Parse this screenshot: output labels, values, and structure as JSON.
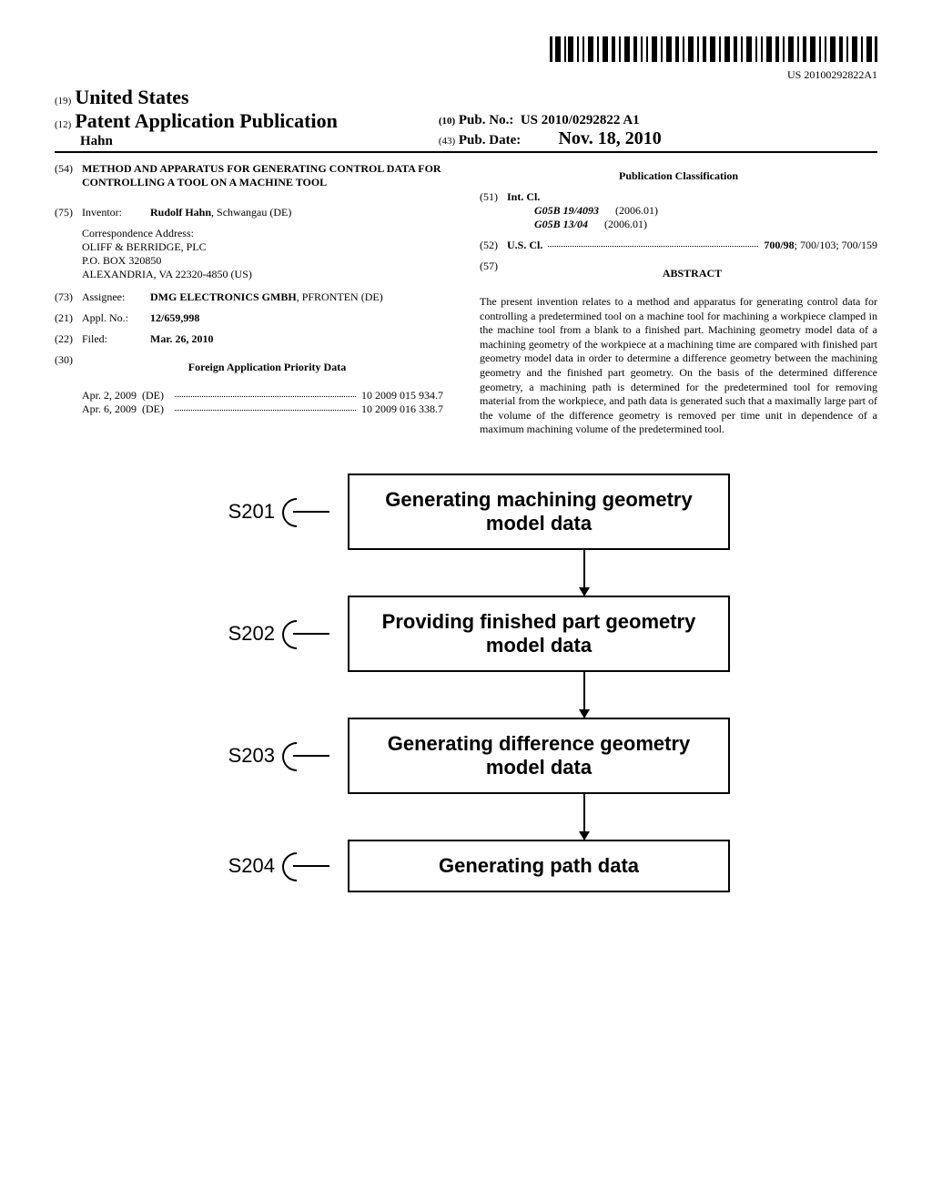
{
  "barcode_number": "US 20100292822A1",
  "header": {
    "prefix19": "(19)",
    "country": "United States",
    "prefix12": "(12)",
    "pub_type": "Patent Application Publication",
    "author": "Hahn",
    "prefix10": "(10)",
    "pub_no_label": "Pub. No.:",
    "pub_no": "US 2010/0292822 A1",
    "prefix43": "(43)",
    "pub_date_label": "Pub. Date:",
    "pub_date": "Nov. 18, 2010"
  },
  "left": {
    "f54": {
      "num": "(54)",
      "text": "METHOD AND APPARATUS FOR GENERATING CONTROL DATA FOR CONTROLLING A TOOL ON A MACHINE TOOL"
    },
    "f75": {
      "num": "(75)",
      "label": "Inventor:",
      "value": "Rudolf Hahn",
      "suffix": ", Schwangau (DE)"
    },
    "corr": {
      "label": "Correspondence Address:",
      "l1": "OLIFF & BERRIDGE, PLC",
      "l2": "P.O. BOX 320850",
      "l3": "ALEXANDRIA, VA 22320-4850 (US)"
    },
    "f73": {
      "num": "(73)",
      "label": "Assignee:",
      "value": "DMG ELECTRONICS GMBH",
      "suffix": ", PFRONTEN (DE)"
    },
    "f21": {
      "num": "(21)",
      "label": "Appl. No.:",
      "value": "12/659,998"
    },
    "f22": {
      "num": "(22)",
      "label": "Filed:",
      "value": "Mar. 26, 2010"
    },
    "f30": {
      "num": "(30)",
      "heading": "Foreign Application Priority Data"
    },
    "priority": [
      {
        "date": "Apr. 2, 2009",
        "cc": "(DE)",
        "num": "10 2009 015 934.7"
      },
      {
        "date": "Apr. 6, 2009",
        "cc": "(DE)",
        "num": "10 2009 016 338.7"
      }
    ]
  },
  "right": {
    "class_heading": "Publication Classification",
    "f51": {
      "num": "(51)",
      "label": "Int. Cl."
    },
    "intcl": [
      {
        "code": "G05B 19/4093",
        "ver": "(2006.01)"
      },
      {
        "code": "G05B 13/04",
        "ver": "(2006.01)"
      }
    ],
    "f52": {
      "num": "(52)",
      "label": "U.S. Cl.",
      "value": "700/98; 700/103; 700/159",
      "bold": "700/98"
    },
    "f57": {
      "num": "(57)",
      "heading": "ABSTRACT"
    },
    "abstract": "The present invention relates to a method and apparatus for generating control data for controlling a predetermined tool on a machine tool for machining a workpiece clamped in the machine tool from a blank to a finished part. Machining geometry model data of a machining geometry of the workpiece at a machining time are compared with finished part geometry model data in order to determine a difference geometry between the machining geometry and the finished part geometry. On the basis of the determined difference geometry, a machining path is determined for the predetermined tool for removing material from the workpiece, and path data is generated such that a maximally large part of the volume of the difference geometry is removed per time unit in dependence of a maximum machining volume of the predetermined tool."
  },
  "flowchart": {
    "nodes": [
      {
        "id": "S201",
        "text": "Generating machining geometry model data"
      },
      {
        "id": "S202",
        "text": "Providing finished part geometry model data"
      },
      {
        "id": "S203",
        "text": "Generating difference geometry model data"
      },
      {
        "id": "S204",
        "text": "Generating path data"
      }
    ],
    "box_border": "#000000",
    "font": "Arial",
    "label_fontsize": 22
  }
}
